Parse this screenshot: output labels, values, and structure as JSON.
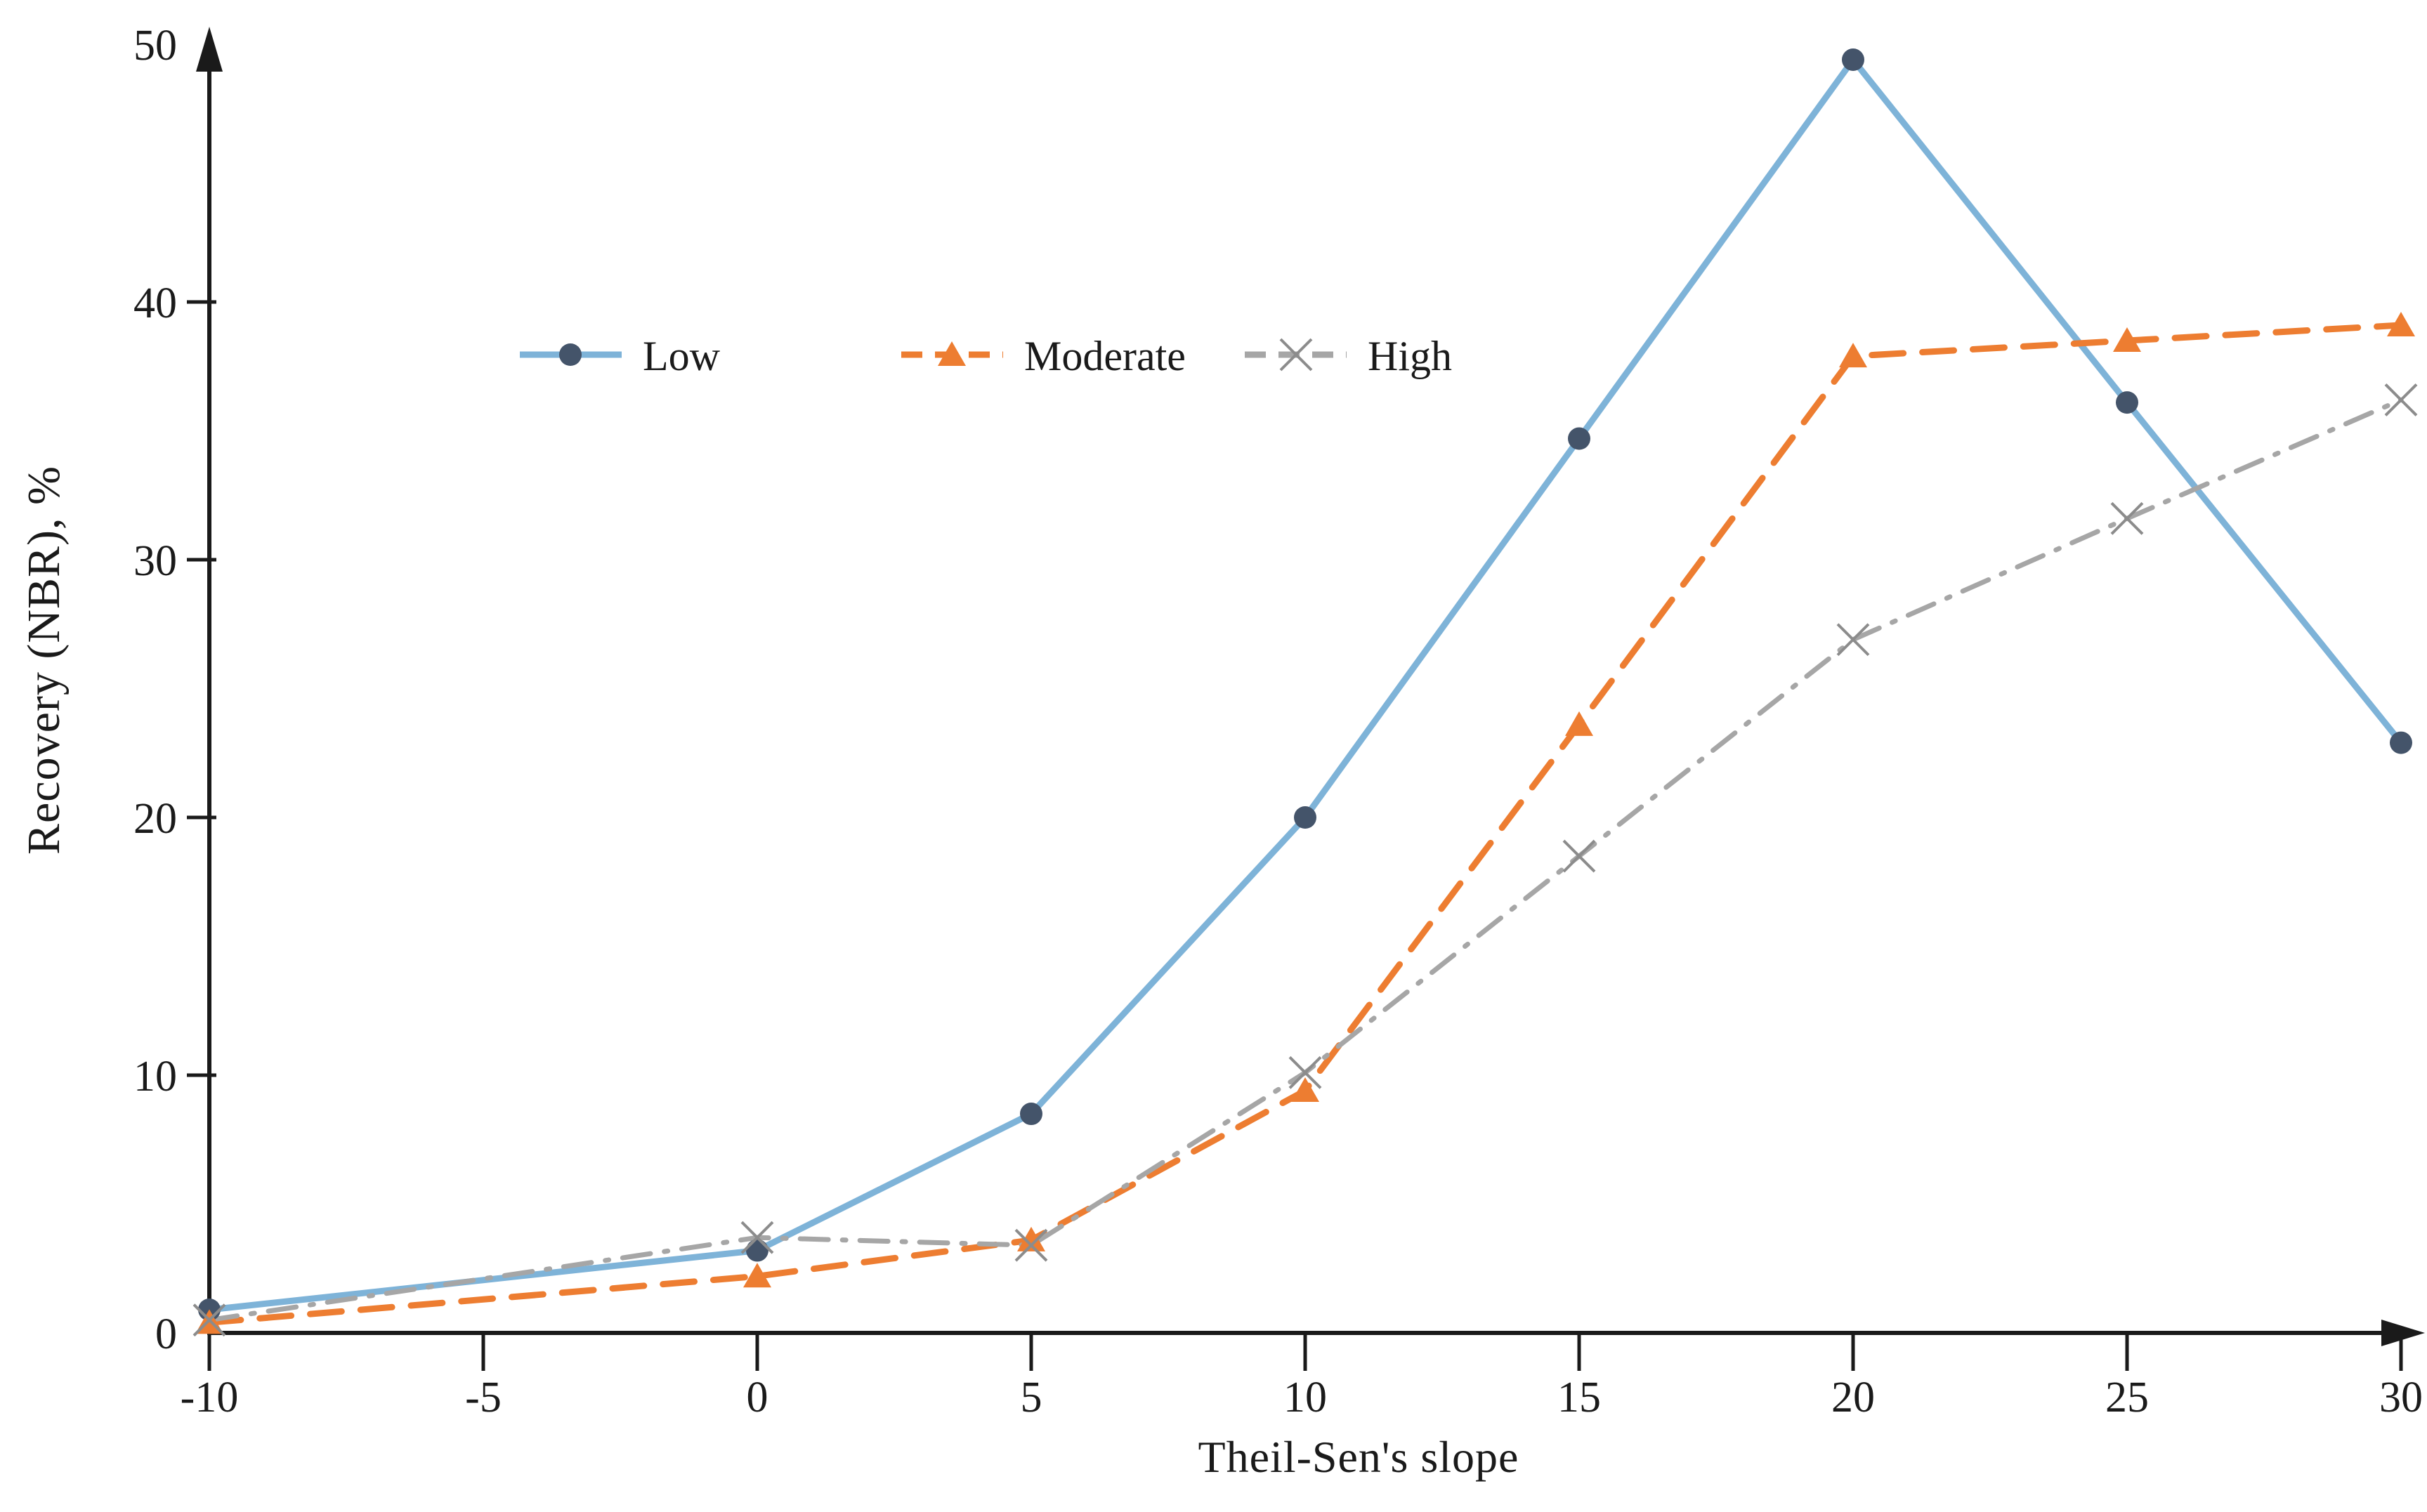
{
  "chart_data": {
    "type": "line",
    "title": "",
    "xlabel": "Theil-Sen's slope",
    "ylabel": "Recovery (NBR), %",
    "x": [
      -10,
      0,
      5,
      10,
      15,
      20,
      25,
      30
    ],
    "x_ticks": [
      -10,
      -5,
      0,
      5,
      10,
      15,
      20,
      25,
      30
    ],
    "y_ticks": [
      0,
      10,
      20,
      30,
      40,
      50
    ],
    "xlim": [
      -10,
      30
    ],
    "ylim": [
      0,
      50
    ],
    "grid": false,
    "legend_position": "inside-upper-left",
    "series": [
      {
        "name": "Low",
        "line_color": "#7EB3D8",
        "line_style": "solid",
        "marker": "circle",
        "marker_color": "#44546A",
        "values": [
          0.9,
          3.2,
          8.5,
          20.0,
          34.7,
          49.4,
          36.1,
          22.9
        ]
      },
      {
        "name": "Moderate",
        "line_color": "#ED7D31",
        "line_style": "dashed",
        "marker": "triangle",
        "marker_color": "#ED7D31",
        "values": [
          0.4,
          2.2,
          3.6,
          9.4,
          23.6,
          37.9,
          38.5,
          39.1
        ]
      },
      {
        "name": "High",
        "line_color": "#A6A6A6",
        "line_style": "dash-dot",
        "marker": "x",
        "marker_color": "#8C8C8C",
        "values": [
          0.5,
          3.7,
          3.4,
          10.1,
          18.5,
          26.9,
          31.6,
          36.2
        ]
      }
    ],
    "axis_color": "#1a1a1a",
    "text_color": "#1a1a1a"
  }
}
